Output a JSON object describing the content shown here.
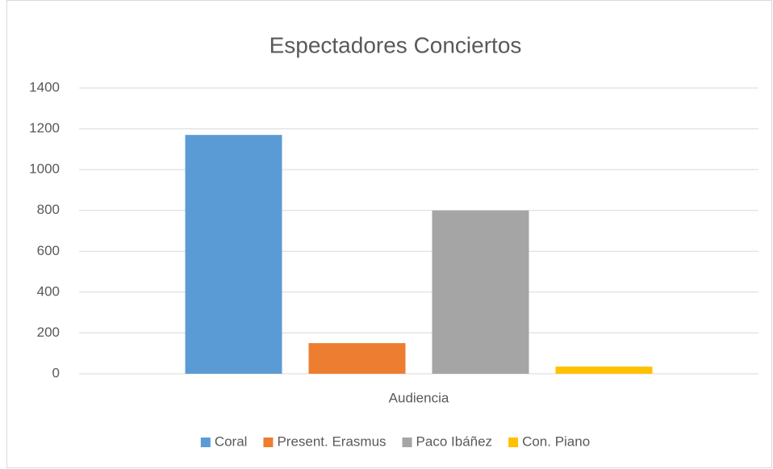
{
  "chart_data": {
    "type": "bar",
    "title": "Espectadores Conciertos",
    "categories": [
      "Audiencia"
    ],
    "series": [
      {
        "name": "Coral",
        "color": "#5b9bd5",
        "values": [
          1170
        ]
      },
      {
        "name": "Present. Erasmus",
        "color": "#ed7d31",
        "values": [
          150
        ]
      },
      {
        "name": "Paco Ibáñez",
        "color": "#a5a5a5",
        "values": [
          800
        ]
      },
      {
        "name": "Con. Piano",
        "color": "#ffc000",
        "values": [
          35
        ]
      }
    ],
    "ylim": [
      0,
      1400
    ],
    "yticks": [
      0,
      200,
      400,
      600,
      800,
      1000,
      1200,
      1400
    ],
    "grid": true,
    "legend": "bottom"
  }
}
